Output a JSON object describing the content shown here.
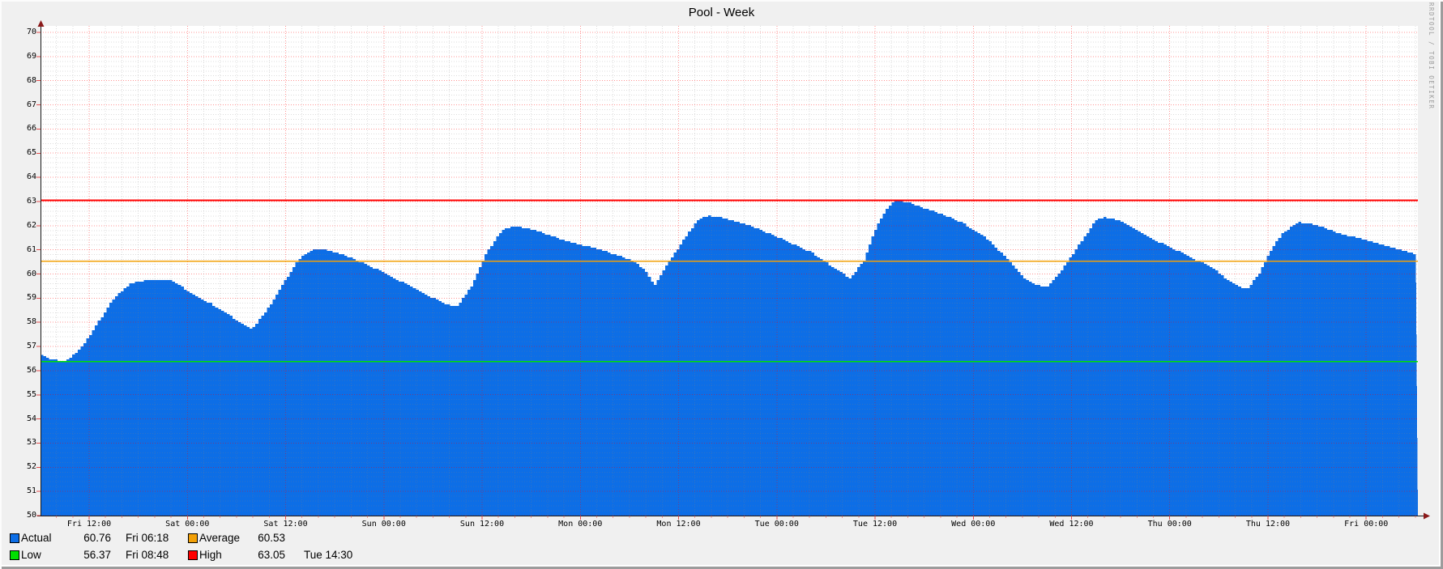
{
  "header": {
    "title": "Pool - Week"
  },
  "watermark": "RRDTOOL / TOBI OETIKER",
  "colors": {
    "actual": "#0d6ee6",
    "average": "#f2a007",
    "low": "#00e000",
    "high": "#ff0000",
    "grid_major": "#ff0000",
    "grid_minor": "#808080",
    "axis": "#1a1a1a",
    "arrow": "#8b1a1a",
    "tick": "#e03030",
    "background": "#f0f0f0",
    "plot_background": "#ffffff",
    "watermark_color": "#9b9b9b",
    "text": "#000000"
  },
  "legend": {
    "rows": [
      {
        "cells": [
          {
            "label": "Actual",
            "value": "60.76",
            "time": "Fri 06:18",
            "color_key": "actual"
          },
          {
            "label": "Average",
            "value": "60.53",
            "time": "",
            "color_key": "average"
          }
        ]
      },
      {
        "cells": [
          {
            "label": "Low",
            "value": "56.37",
            "time": "Fri 08:48",
            "color_key": "low"
          },
          {
            "label": "High",
            "value": "63.05",
            "time": "Tue 14:30",
            "color_key": "high"
          }
        ]
      }
    ]
  },
  "chart_data": {
    "type": "area",
    "title": "Pool - Week",
    "xlabel": "",
    "ylabel": "",
    "ylim": [
      50,
      70
    ],
    "y_tick_step": 1,
    "y_minor_step": 0.2,
    "y_tick_labels": [
      "50",
      "51",
      "52",
      "53",
      "54",
      "55",
      "56",
      "57",
      "58",
      "59",
      "60",
      "61",
      "62",
      "63",
      "64",
      "65",
      "66",
      "67",
      "68",
      "69",
      "70"
    ],
    "x_span_hours": 168.25,
    "x_first_tick_hour": 5.94,
    "x_tick_interval_hours": 12,
    "x_minor_interval_hours": 2,
    "x_tick_labels": [
      "Fri 12:00",
      "Sat 00:00",
      "Sat 12:00",
      "Sun 00:00",
      "Sun 12:00",
      "Mon 00:00",
      "Mon 12:00",
      "Tue 00:00",
      "Tue 12:00",
      "Wed 00:00",
      "Wed 12:00",
      "Thu 00:00",
      "Thu 12:00",
      "Fri 00:00"
    ],
    "grid": "dotted, red majors every 1 unit / 12 h, gray minors every 0.2 unit / 2 h",
    "legend_position": "bottom-left",
    "series": [
      {
        "name": "Actual",
        "kind": "area",
        "color_key": "actual",
        "current": 60.76,
        "current_time": "Fri 06:18",
        "points": [
          [
            0.0,
            56.65
          ],
          [
            1.0,
            56.5
          ],
          [
            2.6,
            56.37
          ],
          [
            3.5,
            56.55
          ],
          [
            5.0,
            57.0
          ],
          [
            6.9,
            58.0
          ],
          [
            8.9,
            59.05
          ],
          [
            10.9,
            59.6
          ],
          [
            12.7,
            59.75
          ],
          [
            15.8,
            59.78
          ],
          [
            17.8,
            59.3
          ],
          [
            20.8,
            58.75
          ],
          [
            23.3,
            58.2
          ],
          [
            25.7,
            57.72
          ],
          [
            27.7,
            58.6
          ],
          [
            29.7,
            59.7
          ],
          [
            31.7,
            60.75
          ],
          [
            33.2,
            61.02
          ],
          [
            34.8,
            61.0
          ],
          [
            37.6,
            60.7
          ],
          [
            41.6,
            60.1
          ],
          [
            45.5,
            59.4
          ],
          [
            49.0,
            58.8
          ],
          [
            50.7,
            58.62
          ],
          [
            52.5,
            59.5
          ],
          [
            54.4,
            60.9
          ],
          [
            56.2,
            61.8
          ],
          [
            57.6,
            61.97
          ],
          [
            59.4,
            61.9
          ],
          [
            64.3,
            61.35
          ],
          [
            68.3,
            61.0
          ],
          [
            71.8,
            60.6
          ],
          [
            73.7,
            60.2
          ],
          [
            74.8,
            59.5
          ],
          [
            76.4,
            60.4
          ],
          [
            78.2,
            61.3
          ],
          [
            80.0,
            62.2
          ],
          [
            81.4,
            62.42
          ],
          [
            83.6,
            62.3
          ],
          [
            86.6,
            62.0
          ],
          [
            90.1,
            61.5
          ],
          [
            94.0,
            60.9
          ],
          [
            97.0,
            60.2
          ],
          [
            98.8,
            59.81
          ],
          [
            100.5,
            60.6
          ],
          [
            101.9,
            61.9
          ],
          [
            103.4,
            62.8
          ],
          [
            104.4,
            63.06
          ],
          [
            105.9,
            62.95
          ],
          [
            108.9,
            62.6
          ],
          [
            112.3,
            62.15
          ],
          [
            115.3,
            61.5
          ],
          [
            117.8,
            60.7
          ],
          [
            120.0,
            59.85
          ],
          [
            121.5,
            59.55
          ],
          [
            122.8,
            59.47
          ],
          [
            124.7,
            60.2
          ],
          [
            126.7,
            61.2
          ],
          [
            128.7,
            62.2
          ],
          [
            129.7,
            62.35
          ],
          [
            131.4,
            62.25
          ],
          [
            133.6,
            61.85
          ],
          [
            136.6,
            61.3
          ],
          [
            139.8,
            60.8
          ],
          [
            143.0,
            60.25
          ],
          [
            145.5,
            59.6
          ],
          [
            147.2,
            59.36
          ],
          [
            148.7,
            60.0
          ],
          [
            150.0,
            60.9
          ],
          [
            151.6,
            61.7
          ],
          [
            153.4,
            62.14
          ],
          [
            155.4,
            62.05
          ],
          [
            158.4,
            61.7
          ],
          [
            162.8,
            61.3
          ],
          [
            166.0,
            61.0
          ],
          [
            168.25,
            60.76
          ]
        ]
      },
      {
        "name": "Average",
        "kind": "hline",
        "color_key": "average",
        "value": 60.53
      },
      {
        "name": "Low",
        "kind": "hline",
        "color_key": "low",
        "value": 56.37,
        "time": "Fri 08:48"
      },
      {
        "name": "High",
        "kind": "hline",
        "color_key": "high",
        "value": 63.05,
        "time": "Tue 14:30"
      }
    ]
  }
}
